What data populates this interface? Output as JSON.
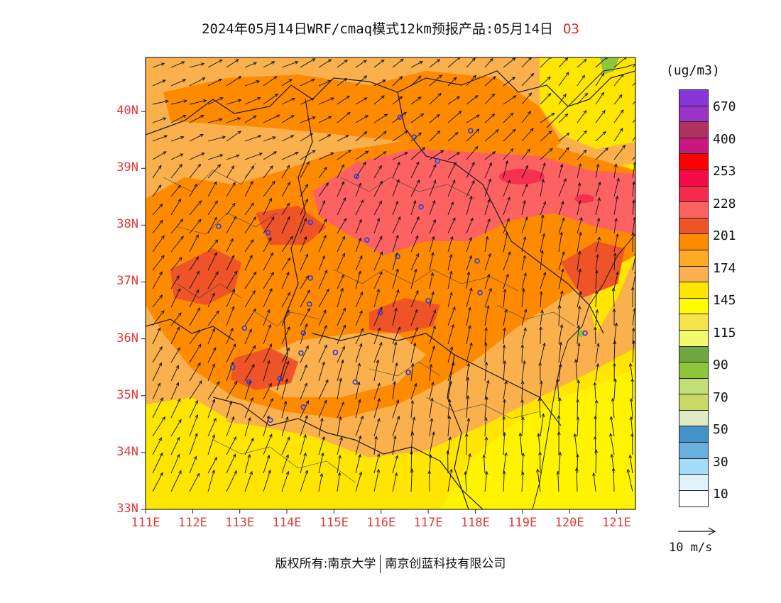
{
  "title": {
    "main": "2024年05月14日WRF/cmaq模式12km预报产品:05月14日",
    "species": "O3"
  },
  "map": {
    "lon_labels": [
      "111E",
      "112E",
      "113E",
      "114E",
      "115E",
      "116E",
      "117E",
      "118E",
      "119E",
      "120E",
      "121E"
    ],
    "lat_labels": [
      "33N",
      "34N",
      "35N",
      "36N",
      "37N",
      "38N",
      "39N",
      "40N"
    ],
    "lon_range": [
      111,
      121.4
    ],
    "lat_range": [
      33,
      40.95
    ],
    "wind_direction_note": "southwesterly to southerly flow",
    "ozone_peak_region": "Hebei / Shandong north (39N, 119E)",
    "station_markers": [
      {
        "lon": 116.4,
        "lat": 39.9
      },
      {
        "lon": 116.7,
        "lat": 39.55
      },
      {
        "lon": 117.2,
        "lat": 39.13
      },
      {
        "lon": 117.9,
        "lat": 39.66
      },
      {
        "lon": 115.48,
        "lat": 38.86
      },
      {
        "lon": 116.85,
        "lat": 38.32
      },
      {
        "lon": 114.5,
        "lat": 38.05
      },
      {
        "lon": 112.55,
        "lat": 37.98
      },
      {
        "lon": 113.6,
        "lat": 37.87
      },
      {
        "lon": 115.7,
        "lat": 37.74
      },
      {
        "lon": 116.35,
        "lat": 37.45
      },
      {
        "lon": 118.04,
        "lat": 37.37
      },
      {
        "lon": 114.5,
        "lat": 37.07
      },
      {
        "lon": 118.1,
        "lat": 36.81
      },
      {
        "lon": 117.0,
        "lat": 36.67
      },
      {
        "lon": 114.48,
        "lat": 36.61
      },
      {
        "lon": 115.98,
        "lat": 36.46
      },
      {
        "lon": 114.35,
        "lat": 36.1
      },
      {
        "lon": 113.1,
        "lat": 36.19
      },
      {
        "lon": 114.3,
        "lat": 35.75
      },
      {
        "lon": 115.03,
        "lat": 35.76
      },
      {
        "lon": 112.85,
        "lat": 35.5
      },
      {
        "lon": 113.85,
        "lat": 35.3
      },
      {
        "lon": 113.2,
        "lat": 35.24
      },
      {
        "lon": 115.45,
        "lat": 35.24
      },
      {
        "lon": 116.58,
        "lat": 35.41
      },
      {
        "lon": 114.35,
        "lat": 34.8
      },
      {
        "lon": 113.65,
        "lat": 34.57
      },
      {
        "lon": 120.33,
        "lat": 36.1
      }
    ]
  },
  "legend": {
    "unit": "(ug/m3)",
    "colors": [
      "#8a35d8",
      "#9b33c8",
      "#b03060",
      "#c8177e",
      "#fe0000",
      "#f40b48",
      "#f72a4e",
      "#fd6262",
      "#ef5428",
      "#fe8a00",
      "#ffaa26",
      "#f9b04d",
      "#ffe500",
      "#fffb00",
      "#f7e34c",
      "#f2f96a",
      "#6fa63d",
      "#8dc63d",
      "#c3de75",
      "#cad865",
      "#e1ebc2",
      "#4493c6",
      "#6aaee0",
      "#a4ddfa",
      "#def3fa",
      "#ffffff"
    ],
    "labels": [
      "670",
      "400",
      "253",
      "228",
      "201",
      "174",
      "145",
      "115",
      "90",
      "70",
      "50",
      "30",
      "10"
    ],
    "reference_vector": "10 m/s"
  },
  "footer": {
    "left": "版权所有:南京大学",
    "right": "南京创蓝科技有限公司"
  }
}
